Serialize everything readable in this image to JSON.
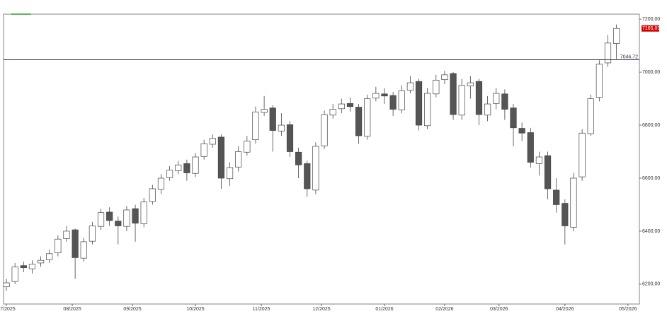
{
  "chart_data": {
    "type": "candlestick",
    "x": [
      0,
      3,
      6,
      9,
      12,
      15,
      18,
      21,
      24,
      27,
      30,
      33,
      36,
      39,
      42,
      45,
      48,
      51,
      54,
      57,
      60,
      63,
      66,
      69,
      72,
      75,
      78,
      81,
      84,
      87,
      90,
      93,
      96,
      99,
      102,
      105,
      108,
      111,
      114,
      117,
      120,
      123,
      126,
      129,
      132,
      135,
      138,
      141,
      144,
      147,
      150,
      153,
      156,
      159,
      162,
      165,
      168,
      171,
      174,
      177,
      180,
      183,
      186,
      189,
      192,
      195,
      198,
      201,
      204,
      207,
      210,
      213
    ],
    "open": [
      6190,
      6210,
      6270,
      6258,
      6280,
      6292,
      6318,
      6372,
      6405,
      6298,
      6362,
      6418,
      6472,
      6438,
      6418,
      6485,
      6428,
      6512,
      6558,
      6602,
      6628,
      6655,
      6618,
      6682,
      6728,
      6755,
      6598,
      6642,
      6698,
      6745,
      6848,
      6865,
      6778,
      6802,
      6698,
      6655,
      6555,
      6722,
      6838,
      6862,
      6882,
      6868,
      6758,
      6902,
      6918,
      6912,
      6858,
      6932,
      6965,
      6798,
      6918,
      6972,
      6995,
      6838,
      6948,
      6965,
      6838,
      6882,
      6918,
      6865,
      6788,
      6772,
      6655,
      6685,
      6555,
      6505,
      6415,
      6605,
      6768,
      6905,
      7035,
      7108
    ],
    "high": [
      6220,
      6280,
      6285,
      6290,
      6305,
      6330,
      6385,
      6420,
      6410,
      6375,
      6435,
      6485,
      6490,
      6455,
      6495,
      6500,
      6525,
      6575,
      6615,
      6645,
      6665,
      6670,
      6695,
      6745,
      6765,
      6765,
      6660,
      6720,
      6760,
      6870,
      6910,
      6875,
      6845,
      6815,
      6715,
      6665,
      6735,
      6855,
      6880,
      6900,
      6905,
      6880,
      6915,
      6945,
      6940,
      6925,
      6950,
      6985,
      6975,
      6940,
      6990,
      7005,
      7000,
      6975,
      6985,
      6975,
      6910,
      6940,
      6935,
      6880,
      6810,
      6790,
      6700,
      6700,
      6600,
      6520,
      6620,
      6785,
      6915,
      7045,
      7140,
      7180
    ],
    "low": [
      6175,
      6200,
      6245,
      6240,
      6265,
      6280,
      6305,
      6360,
      6220,
      6285,
      6350,
      6405,
      6420,
      6350,
      6400,
      6360,
      6415,
      6500,
      6540,
      6590,
      6615,
      6590,
      6605,
      6670,
      6715,
      6560,
      6570,
      6625,
      6685,
      6730,
      6835,
      6700,
      6760,
      6680,
      6600,
      6530,
      6540,
      6710,
      6825,
      6845,
      6850,
      6730,
      6745,
      6890,
      6880,
      6835,
      6845,
      6920,
      6780,
      6785,
      6905,
      6955,
      6820,
      6820,
      6900,
      6800,
      6815,
      6860,
      6820,
      6720,
      6740,
      6640,
      6610,
      6520,
      6470,
      6350,
      6400,
      6590,
      6760,
      6890,
      7020,
      7050
    ],
    "close": [
      6205,
      6265,
      6262,
      6275,
      6290,
      6315,
      6370,
      6400,
      6300,
      6360,
      6420,
      6470,
      6440,
      6420,
      6480,
      6430,
      6510,
      6560,
      6600,
      6630,
      6650,
      6620,
      6680,
      6730,
      6750,
      6600,
      6640,
      6700,
      6740,
      6850,
      6860,
      6780,
      6800,
      6700,
      6650,
      6560,
      6720,
      6840,
      6860,
      6880,
      6870,
      6760,
      6900,
      6920,
      6910,
      6860,
      6930,
      6960,
      6800,
      6920,
      6970,
      6990,
      6840,
      6950,
      6960,
      6840,
      6880,
      6920,
      6860,
      6790,
      6770,
      6660,
      6680,
      6560,
      6500,
      6420,
      6600,
      6770,
      6900,
      7030,
      7110,
      7165
    ],
    "up_color": "#ffffff",
    "down_color": "#555555",
    "xlim": [
      -1,
      221
    ],
    "xticks": [
      {
        "value": 0,
        "label": "07/2025"
      },
      {
        "value": 23,
        "label": "08/2025"
      },
      {
        "value": 44,
        "label": "09/2025"
      },
      {
        "value": 66,
        "label": "10/2025"
      },
      {
        "value": 89,
        "label": "11/2025"
      },
      {
        "value": 110,
        "label": "12/2025"
      },
      {
        "value": 132,
        "label": "01/2026"
      },
      {
        "value": 153,
        "label": "02/2026"
      },
      {
        "value": 172,
        "label": "03/2026"
      },
      {
        "value": 195,
        "label": "04/2026"
      },
      {
        "value": 217,
        "label": "05/2026"
      }
    ],
    "ylim": [
      6125,
      7219
    ],
    "yticks": [
      {
        "value": 6200,
        "label": "6200,00"
      },
      {
        "value": 6400,
        "label": "6400,00"
      },
      {
        "value": 6600,
        "label": "6600,00"
      },
      {
        "value": 6800,
        "label": "6800,00"
      },
      {
        "value": 7000,
        "label": "7000,00"
      },
      {
        "value": 7200,
        "label": "7200,00"
      }
    ],
    "hline": {
      "value": 7046.72,
      "label": "7046,72"
    },
    "last_price": {
      "value": 7165.09,
      "label": "7165,09"
    }
  }
}
